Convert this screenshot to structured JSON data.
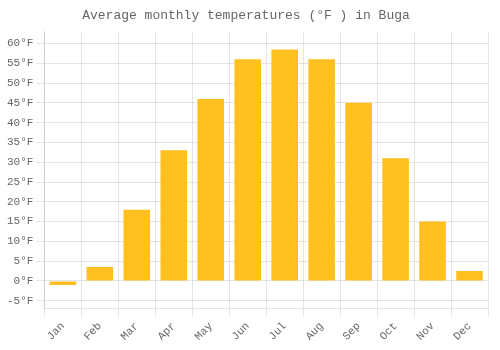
{
  "chart_data": {
    "type": "bar",
    "title": "Average monthly temperatures (°F ) in Buga",
    "categories": [
      "Jan",
      "Feb",
      "Mar",
      "Apr",
      "May",
      "Jun",
      "Jul",
      "Aug",
      "Sep",
      "Oct",
      "Nov",
      "Dec"
    ],
    "values": [
      -1,
      3.5,
      18,
      33,
      46,
      56,
      58.5,
      56,
      45,
      31,
      15,
      2.5
    ],
    "color": "#FFC020",
    "ylim": [
      -7,
      63
    ],
    "yticks": [
      {
        "value": -5,
        "label": "-5°F"
      },
      {
        "value": 0,
        "label": "0°F"
      },
      {
        "value": 5,
        "label": "5°F"
      },
      {
        "value": 10,
        "label": "10°F"
      },
      {
        "value": 15,
        "label": "15°F"
      },
      {
        "value": 20,
        "label": "20°F"
      },
      {
        "value": 25,
        "label": "25°F"
      },
      {
        "value": 30,
        "label": "30°F"
      },
      {
        "value": 35,
        "label": "35°F"
      },
      {
        "value": 40,
        "label": "40°F"
      },
      {
        "value": 45,
        "label": "45°F"
      },
      {
        "value": 50,
        "label": "50°F"
      },
      {
        "value": 55,
        "label": "55°F"
      },
      {
        "value": 60,
        "label": "60°F"
      }
    ],
    "grid": true
  }
}
